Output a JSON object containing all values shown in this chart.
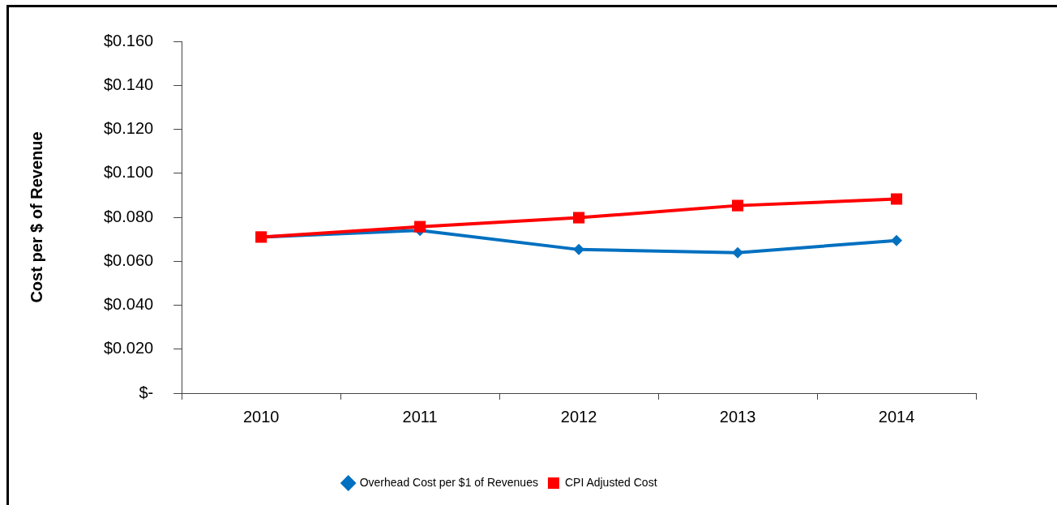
{
  "chart_data": {
    "type": "line",
    "ylabel": "Cost per $ of Revenue",
    "categories": [
      "2010",
      "2011",
      "2012",
      "2013",
      "2014"
    ],
    "series": [
      {
        "name": "Overhead Cost per $1 of Revenues",
        "color": "#0070c0",
        "marker": "diamond",
        "values": [
          0.071,
          0.074,
          0.0653,
          0.0639,
          0.0694
        ]
      },
      {
        "name": "CPI Adjusted Cost",
        "color": "#ff0000",
        "marker": "square",
        "values": [
          0.071,
          0.0757,
          0.0798,
          0.0853,
          0.0883
        ]
      }
    ],
    "ylim": [
      0,
      0.16
    ],
    "yticks": [
      {
        "value": 0,
        "label": "$-"
      },
      {
        "value": 0.02,
        "label": "$0.020"
      },
      {
        "value": 0.04,
        "label": "$0.040"
      },
      {
        "value": 0.06,
        "label": "$0.060"
      },
      {
        "value": 0.08,
        "label": "$0.080"
      },
      {
        "value": 0.1,
        "label": "$0.100"
      },
      {
        "value": 0.12,
        "label": "$0.120"
      },
      {
        "value": 0.14,
        "label": "$0.140"
      },
      {
        "value": 0.16,
        "label": "$0.160"
      }
    ],
    "grid": false,
    "legend": "bottom",
    "line_style": "solid"
  }
}
